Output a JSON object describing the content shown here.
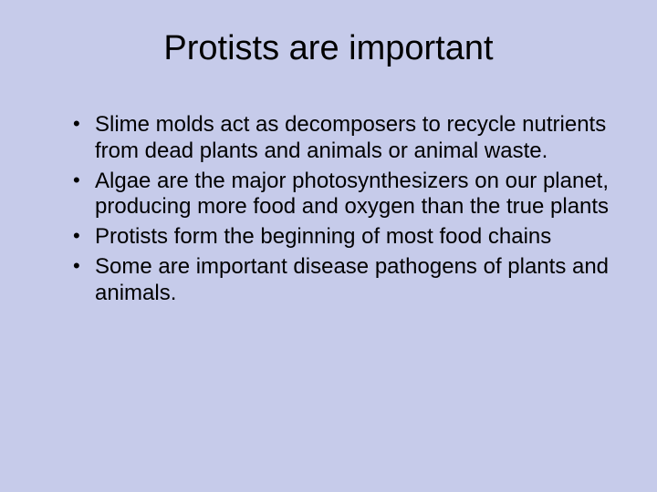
{
  "slide": {
    "background_color": "#c6cbea",
    "text_color": "#000000",
    "title": "Protists are important",
    "title_fontsize": 38,
    "body_fontsize": 24,
    "font_family": "Arial",
    "bullets": [
      "Slime molds act as decomposers to recycle nutrients from dead plants and animals or animal waste.",
      "Algae are the major photosynthesizers on our planet, producing more food and oxygen than the true plants",
      "Protists form the beginning of most food chains",
      "Some are important disease pathogens of plants and animals."
    ]
  }
}
